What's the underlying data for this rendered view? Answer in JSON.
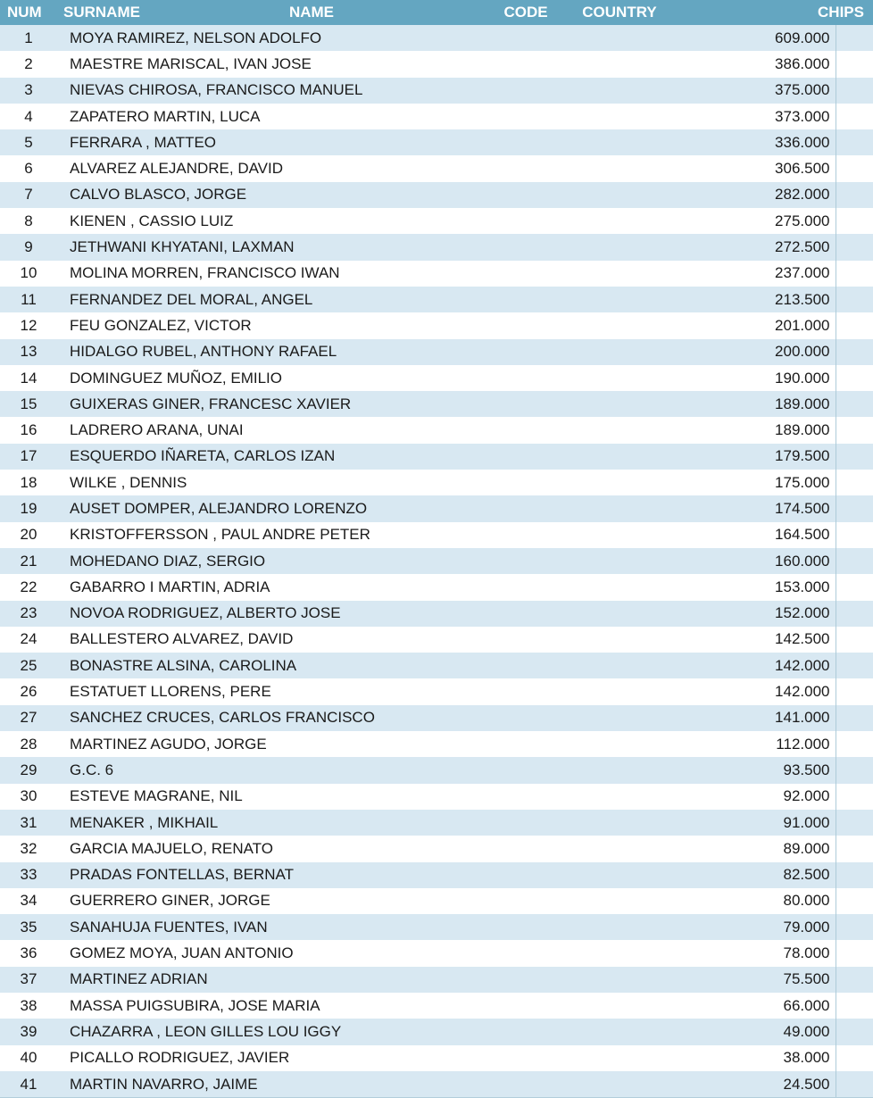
{
  "colors": {
    "header_bg": "#64A6C1",
    "header_text": "#FFFFFF",
    "row_alt_bg": "#D8E8F2",
    "row_bg": "#FFFFFF",
    "text": "#1A1A1A"
  },
  "headers": {
    "num": "NUM",
    "surname": "SURNAME",
    "name": "NAME",
    "code": "CODE",
    "country": "COUNTRY",
    "chips": "CHIPS"
  },
  "rows": [
    {
      "num": "1",
      "surname": "MOYA RAMIREZ, NELSON ADOLFO",
      "code": "",
      "country": "",
      "chips": "609.000"
    },
    {
      "num": "2",
      "surname": "MAESTRE MARISCAL, IVAN JOSE",
      "code": "",
      "country": "",
      "chips": "386.000"
    },
    {
      "num": "3",
      "surname": "NIEVAS CHIROSA, FRANCISCO MANUEL",
      "code": "",
      "country": "",
      "chips": "375.000"
    },
    {
      "num": "4",
      "surname": "ZAPATERO MARTIN, LUCA",
      "code": "",
      "country": "",
      "chips": "373.000"
    },
    {
      "num": "5",
      "surname": "FERRARA , MATTEO",
      "code": "",
      "country": "",
      "chips": "336.000"
    },
    {
      "num": "6",
      "surname": "ALVAREZ ALEJANDRE, DAVID",
      "code": "",
      "country": "",
      "chips": "306.500"
    },
    {
      "num": "7",
      "surname": "CALVO BLASCO, JORGE",
      "code": "",
      "country": "",
      "chips": "282.000"
    },
    {
      "num": "8",
      "surname": "KIENEN , CASSIO LUIZ",
      "code": "",
      "country": "",
      "chips": "275.000"
    },
    {
      "num": "9",
      "surname": "JETHWANI KHYATANI, LAXMAN",
      "code": "",
      "country": "",
      "chips": "272.500"
    },
    {
      "num": "10",
      "surname": "MOLINA MORREN, FRANCISCO IWAN",
      "code": "",
      "country": "",
      "chips": "237.000"
    },
    {
      "num": "11",
      "surname": "FERNANDEZ DEL MORAL, ANGEL",
      "code": "",
      "country": "",
      "chips": "213.500"
    },
    {
      "num": "12",
      "surname": "FEU GONZALEZ, VICTOR",
      "code": "",
      "country": "",
      "chips": "201.000"
    },
    {
      "num": "13",
      "surname": "HIDALGO RUBEL, ANTHONY RAFAEL",
      "code": "",
      "country": "",
      "chips": "200.000"
    },
    {
      "num": "14",
      "surname": "DOMINGUEZ MUÑOZ, EMILIO",
      "code": "",
      "country": "",
      "chips": "190.000"
    },
    {
      "num": "15",
      "surname": "GUIXERAS GINER, FRANCESC XAVIER",
      "code": "",
      "country": "",
      "chips": "189.000"
    },
    {
      "num": "16",
      "surname": "LADRERO ARANA, UNAI",
      "code": "",
      "country": "",
      "chips": "189.000"
    },
    {
      "num": "17",
      "surname": "ESQUERDO IÑARETA, CARLOS IZAN",
      "code": "",
      "country": "",
      "chips": "179.500"
    },
    {
      "num": "18",
      "surname": "WILKE , DENNIS",
      "code": "",
      "country": "",
      "chips": "175.000"
    },
    {
      "num": "19",
      "surname": "AUSET DOMPER, ALEJANDRO LORENZO",
      "code": "",
      "country": "",
      "chips": "174.500"
    },
    {
      "num": "20",
      "surname": "KRISTOFFERSSON , PAUL ANDRE PETER",
      "code": "",
      "country": "",
      "chips": "164.500"
    },
    {
      "num": "21",
      "surname": "MOHEDANO DIAZ, SERGIO",
      "code": "",
      "country": "",
      "chips": "160.000"
    },
    {
      "num": "22",
      "surname": "GABARRO I MARTIN, ADRIA",
      "code": "",
      "country": "",
      "chips": "153.000"
    },
    {
      "num": "23",
      "surname": "NOVOA RODRIGUEZ, ALBERTO JOSE",
      "code": "",
      "country": "",
      "chips": "152.000"
    },
    {
      "num": "24",
      "surname": "BALLESTERO ALVAREZ, DAVID",
      "code": "",
      "country": "",
      "chips": "142.500"
    },
    {
      "num": "25",
      "surname": "BONASTRE ALSINA, CAROLINA",
      "code": "",
      "country": "",
      "chips": "142.000"
    },
    {
      "num": "26",
      "surname": "ESTATUET LLORENS, PERE",
      "code": "",
      "country": "",
      "chips": "142.000"
    },
    {
      "num": "27",
      "surname": "SANCHEZ CRUCES, CARLOS FRANCISCO",
      "code": "",
      "country": "",
      "chips": "141.000"
    },
    {
      "num": "28",
      "surname": "MARTINEZ AGUDO, JORGE",
      "code": "",
      "country": "",
      "chips": "112.000"
    },
    {
      "num": "29",
      "surname": "G.C. 6",
      "code": "",
      "country": "",
      "chips": "93.500"
    },
    {
      "num": "30",
      "surname": "ESTEVE MAGRANE, NIL",
      "code": "",
      "country": "",
      "chips": "92.000"
    },
    {
      "num": "31",
      "surname": "MENAKER , MIKHAIL",
      "code": "",
      "country": "",
      "chips": "91.000"
    },
    {
      "num": "32",
      "surname": "GARCIA MAJUELO, RENATO",
      "code": "",
      "country": "",
      "chips": "89.000"
    },
    {
      "num": "33",
      "surname": "PRADAS FONTELLAS, BERNAT",
      "code": "",
      "country": "",
      "chips": "82.500"
    },
    {
      "num": "34",
      "surname": "GUERRERO GINER, JORGE",
      "code": "",
      "country": "",
      "chips": "80.000"
    },
    {
      "num": "35",
      "surname": "SANAHUJA FUENTES, IVAN",
      "code": "",
      "country": "",
      "chips": "79.000"
    },
    {
      "num": "36",
      "surname": "GOMEZ MOYA, JUAN ANTONIO",
      "code": "",
      "country": "",
      "chips": "78.000"
    },
    {
      "num": "37",
      "surname": "MARTINEZ ADRIAN",
      "code": "",
      "country": "",
      "chips": "75.500"
    },
    {
      "num": "38",
      "surname": "MASSA PUIGSUBIRA, JOSE MARIA",
      "code": "",
      "country": "",
      "chips": "66.000"
    },
    {
      "num": "39",
      "surname": "CHAZARRA , LEON GILLES LOU IGGY",
      "code": "",
      "country": "",
      "chips": "49.000"
    },
    {
      "num": "40",
      "surname": "PICALLO RODRIGUEZ, JAVIER",
      "code": "",
      "country": "",
      "chips": "38.000"
    },
    {
      "num": "41",
      "surname": "MARTIN NAVARRO, JAIME",
      "code": "",
      "country": "",
      "chips": "24.500"
    }
  ]
}
